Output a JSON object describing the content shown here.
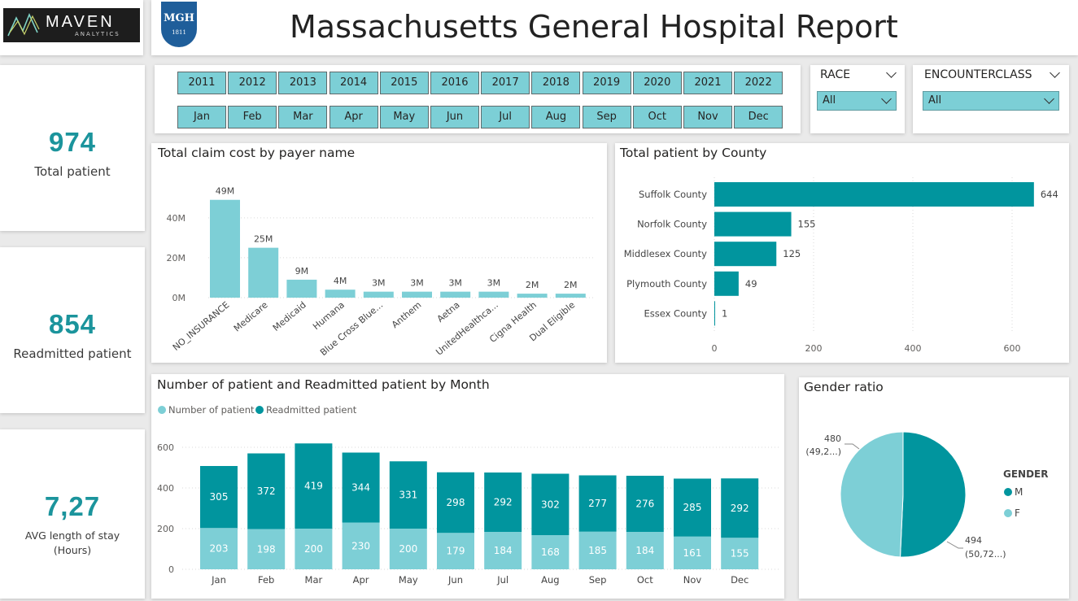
{
  "header": {
    "logo_text": "MAVEN",
    "logo_sub": "ANALYTICS",
    "badge_text": "MGH",
    "badge_year": "1811",
    "title": "Massachusetts General Hospital Report"
  },
  "kpis": [
    {
      "value": "974",
      "label": "Total patient"
    },
    {
      "value": "854",
      "label": "Readmitted patient"
    },
    {
      "value": "7,27",
      "label": "AVG length of stay",
      "label2": "(Hours)"
    }
  ],
  "filters": {
    "years": [
      "2011",
      "2012",
      "2013",
      "2014",
      "2015",
      "2016",
      "2017",
      "2018",
      "2019",
      "2020",
      "2021",
      "2022"
    ],
    "months": [
      "Jan",
      "Feb",
      "Mar",
      "Apr",
      "May",
      "Jun",
      "Jul",
      "Aug",
      "Sep",
      "Oct",
      "Nov",
      "Dec"
    ],
    "race": {
      "title": "RACE",
      "value": "All"
    },
    "encounter": {
      "title": "ENCOUNTERCLASS",
      "value": "All"
    }
  },
  "colors": {
    "dark_teal": "#01959e",
    "light_teal": "#7dcfd6",
    "kpi": "#1b949c"
  },
  "chart_data": [
    {
      "type": "bar",
      "title": "Total claim cost by payer name",
      "categories": [
        "NO_INSURANCE",
        "Medicare",
        "Medicaid",
        "Humana",
        "Blue Cross Blue...",
        "Anthem",
        "Aetna",
        "UnitedHealthca...",
        "Cigna Health",
        "Dual Eligible"
      ],
      "values": [
        49,
        25,
        9,
        4,
        3,
        3,
        3,
        3,
        2,
        2
      ],
      "value_labels": [
        "49M",
        "25M",
        "9M",
        "4M",
        "3M",
        "3M",
        "3M",
        "3M",
        "2M",
        "2M"
      ],
      "unit": "M",
      "yticks": [
        "0M",
        "20M",
        "40M"
      ],
      "ylim": [
        0,
        55
      ]
    },
    {
      "type": "bar",
      "orientation": "horizontal",
      "title": "Total patient by County",
      "categories": [
        "Suffolk County",
        "Norfolk County",
        "Middlesex County",
        "Plymouth County",
        "Essex County"
      ],
      "values": [
        644,
        155,
        125,
        49,
        1
      ],
      "xticks": [
        "0",
        "200",
        "400",
        "600"
      ],
      "xlim": [
        0,
        700
      ]
    },
    {
      "type": "bar",
      "stacked": true,
      "title": "Number of patient and Readmitted patient by Month",
      "categories": [
        "Jan",
        "Feb",
        "Mar",
        "Apr",
        "May",
        "Jun",
        "Jul",
        "Aug",
        "Sep",
        "Oct",
        "Nov",
        "Dec"
      ],
      "series": [
        {
          "name": "Number of patient",
          "values": [
            203,
            198,
            200,
            230,
            200,
            179,
            184,
            168,
            185,
            184,
            161,
            155
          ]
        },
        {
          "name": "Readmitted patient",
          "values": [
            305,
            372,
            419,
            344,
            331,
            298,
            292,
            302,
            277,
            276,
            285,
            292
          ]
        }
      ],
      "yticks": [
        "0",
        "200",
        "400",
        "600"
      ],
      "ylim": [
        0,
        620
      ]
    },
    {
      "type": "pie",
      "title": "Gender ratio",
      "legend_title": "GENDER",
      "slices": [
        {
          "name": "M",
          "value": 494,
          "label": "494",
          "pct": "(50,72...)"
        },
        {
          "name": "F",
          "value": 480,
          "label": "480",
          "pct": "(49,2...)"
        }
      ]
    }
  ]
}
